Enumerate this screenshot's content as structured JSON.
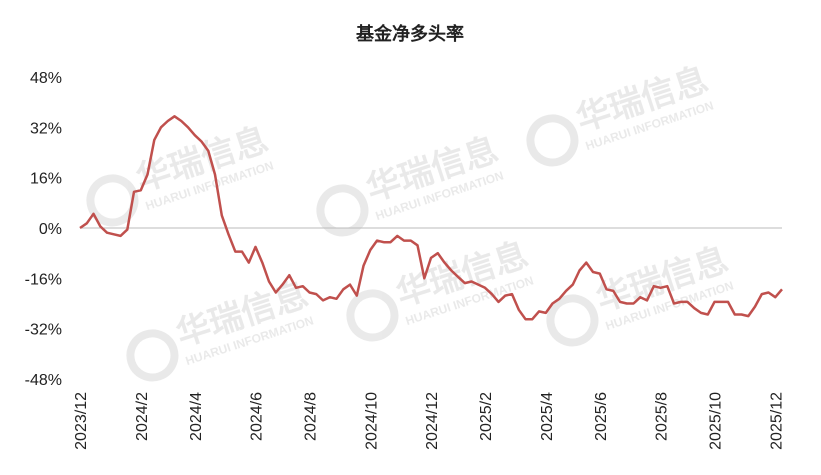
{
  "chart_data": {
    "type": "line",
    "title": "基金净多头率",
    "watermark": {
      "title": "华瑞信息",
      "subtitle": "HUARUI INFORMATION"
    },
    "categories": [
      "2023/12",
      null,
      null,
      null,
      null,
      null,
      null,
      null,
      null,
      "2024/2",
      null,
      null,
      null,
      null,
      null,
      null,
      null,
      "2024/4",
      null,
      null,
      null,
      null,
      null,
      null,
      null,
      null,
      "2024/6",
      null,
      null,
      null,
      null,
      null,
      null,
      null,
      "2024/8",
      null,
      null,
      null,
      null,
      null,
      null,
      null,
      null,
      "2024/10",
      null,
      null,
      null,
      null,
      null,
      null,
      null,
      null,
      "2024/12",
      null,
      null,
      null,
      null,
      null,
      null,
      null,
      "2025/2",
      null,
      null,
      null,
      null,
      null,
      null,
      null,
      null,
      "2025/4",
      null,
      null,
      null,
      null,
      null,
      null,
      null,
      "2025/6",
      null,
      null,
      null,
      null,
      null,
      null,
      null,
      null,
      "2025/8",
      null,
      null,
      null,
      null,
      null,
      null,
      null,
      "2025/10",
      null,
      null,
      null,
      null,
      null,
      null,
      null,
      null,
      "2025/12",
      null
    ],
    "series": [
      {
        "name": "基金净多头率",
        "color": "#c0504d",
        "values": [
          0,
          1.5,
          4.5,
          0.5,
          -1.5,
          -2,
          -2.5,
          -0.5,
          11.5,
          12,
          17,
          28,
          32,
          34,
          35.5,
          34,
          32,
          29.5,
          27.5,
          24.5,
          17,
          4,
          -2,
          -7.5,
          -7.5,
          -11,
          -6,
          -11,
          -17,
          -20.5,
          -18,
          -15,
          -19,
          -18.5,
          -20.5,
          -21,
          -23,
          -22,
          -22.5,
          -19.5,
          -18,
          -21.5,
          -12,
          -7,
          -4,
          -4.5,
          -4.5,
          -2.5,
          -4,
          -4,
          -5.5,
          -16,
          -9.5,
          -8,
          -11,
          -13.5,
          -15.5,
          -17.5,
          -17,
          -18,
          -19,
          -21,
          -23.5,
          -21.5,
          -21,
          -26,
          -29,
          -29,
          -26.5,
          -27,
          -24,
          -22.5,
          -20,
          -18,
          -13.5,
          -11,
          -14,
          -14.5,
          -19.5,
          -20,
          -23.5,
          -24,
          -24,
          -22,
          -23,
          -18.5,
          -19,
          -18.5,
          -24,
          -23.5,
          -23.5,
          -25.5,
          -27,
          -27.5,
          -23.5,
          -23.5,
          -23.5,
          -27.5,
          -27.5,
          -28,
          -25,
          -21,
          -20.5,
          -22,
          -19.5
        ]
      }
    ],
    "ylim": [
      -48,
      48
    ],
    "yticks": [
      {
        "value": -48,
        "label": "-48%"
      },
      {
        "value": -32,
        "label": "-32%"
      },
      {
        "value": -16,
        "label": "-16%"
      },
      {
        "value": 0,
        "label": "0%"
      },
      {
        "value": 16,
        "label": "16%"
      },
      {
        "value": 32,
        "label": "32%"
      },
      {
        "value": 48,
        "label": "48%"
      }
    ],
    "grid": false
  }
}
